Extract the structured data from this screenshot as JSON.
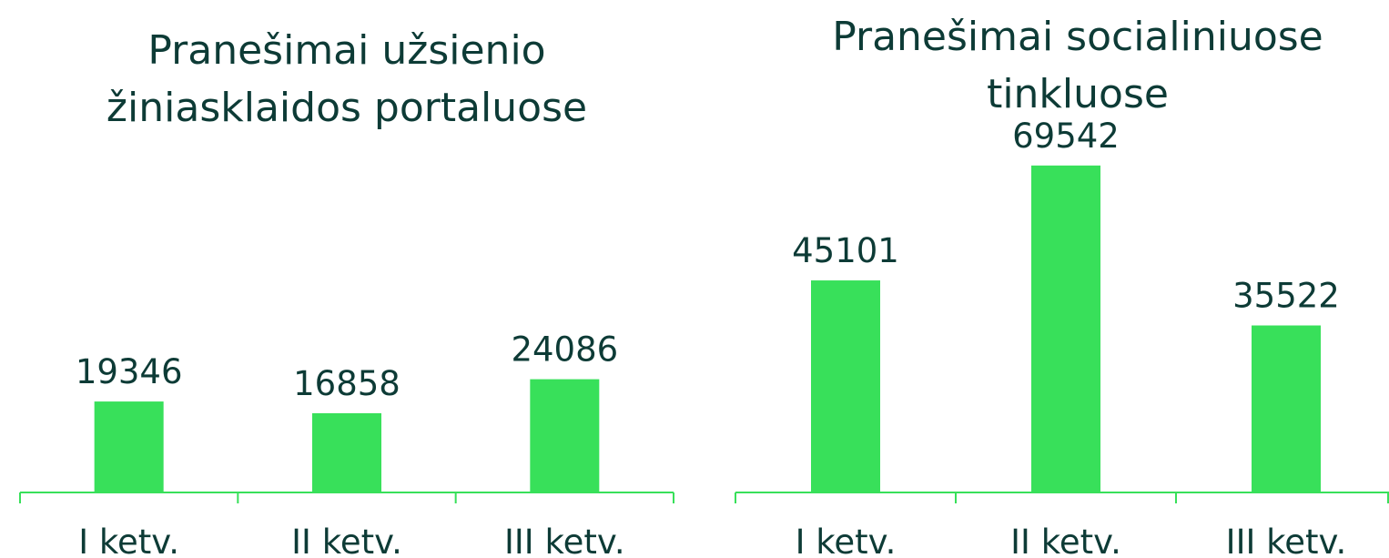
{
  "chart_data": [
    {
      "type": "bar",
      "title": "Pranešimai užsienio žiniasklaidos portaluose",
      "categories": [
        "I ketv.",
        "II ketv.",
        "III ketv."
      ],
      "values": [
        19346,
        16858,
        24086
      ],
      "color": "#38e05a"
    },
    {
      "type": "bar",
      "title": "Pranešimai socialiniuose tinkluose",
      "categories": [
        "I ketv.",
        "II ketv.",
        "III ketv."
      ],
      "values": [
        45101,
        69542,
        35522
      ],
      "color": "#38e05a"
    }
  ]
}
